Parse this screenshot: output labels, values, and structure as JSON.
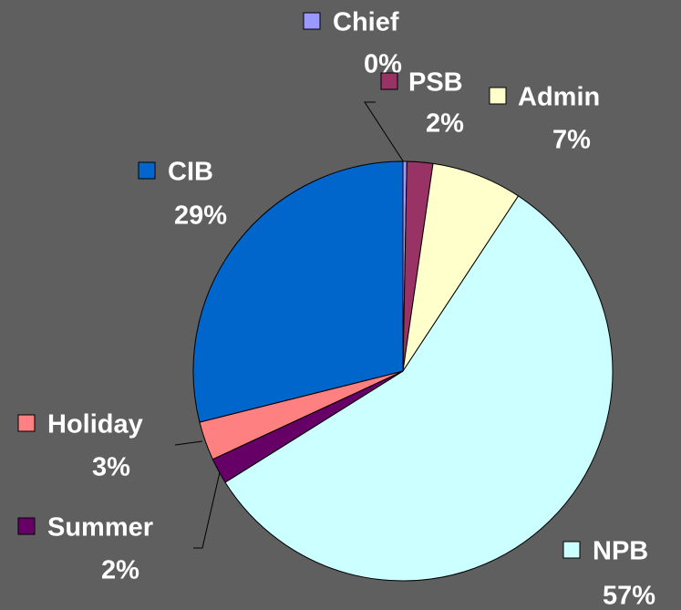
{
  "chart_data": {
    "type": "pie",
    "categories": [
      "Chief",
      "PSB",
      "Admin",
      "NPB",
      "Summer",
      "Holiday",
      "CIB"
    ],
    "values": [
      0.3,
      2,
      7,
      57,
      2,
      3,
      29
    ],
    "value_labels": [
      "0%",
      "2%",
      "7%",
      "57%",
      "2%",
      "3%",
      "29%"
    ],
    "colors": [
      "#9999ff",
      "#993366",
      "#ffffcc",
      "#ccffff",
      "#660066",
      "#ff8080",
      "#0066cc"
    ]
  }
}
